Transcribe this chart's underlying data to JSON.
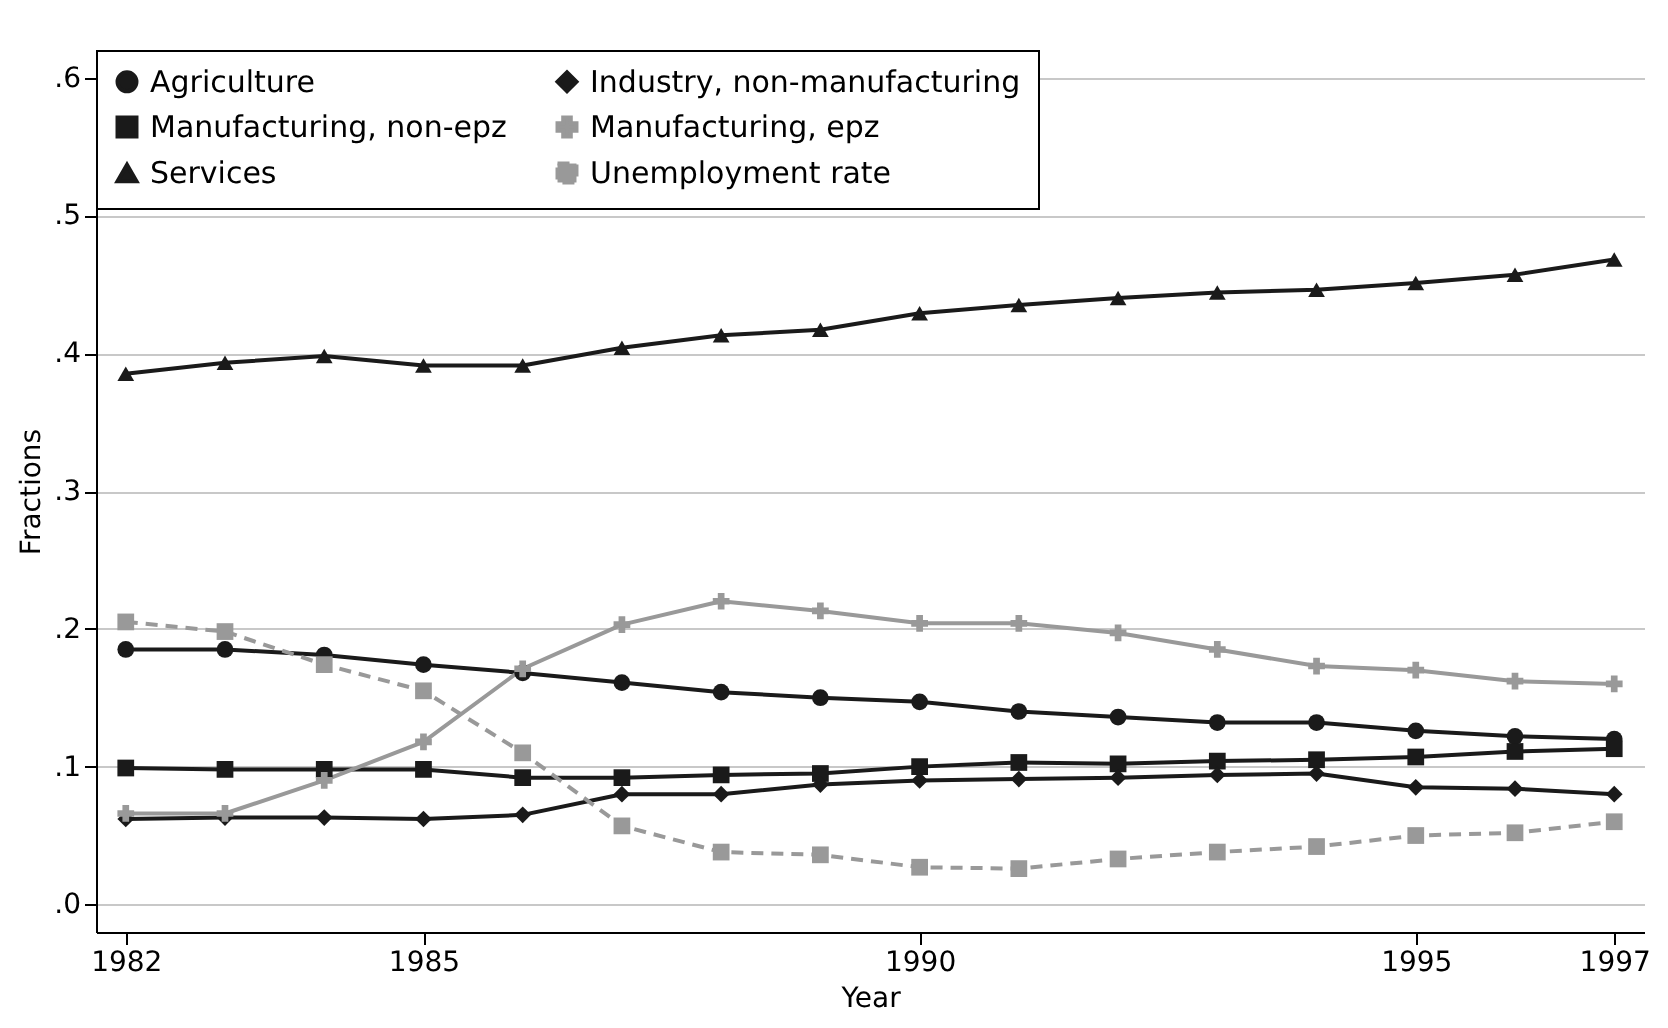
{
  "chart_data": {
    "type": "line",
    "xlabel": "Year",
    "ylabel": "Fractions",
    "x": [
      1982,
      1983,
      1984,
      1985,
      1986,
      1987,
      1988,
      1989,
      1990,
      1991,
      1992,
      1993,
      1994,
      1995,
      1996,
      1997
    ],
    "xlim": [
      1981.7,
      1997.3
    ],
    "xticks": [
      1982,
      1985,
      1990,
      1995,
      1997
    ],
    "ylim": [
      -0.02,
      0.62
    ],
    "yticks": [
      {
        "value": 0,
        "label": ".0"
      },
      {
        "value": 0.1,
        "label": ".1"
      },
      {
        "value": 0.2,
        "label": ".2"
      },
      {
        "value": 0.3,
        "label": ".3"
      },
      {
        "value": 0.4,
        "label": ".4"
      },
      {
        "value": 0.5,
        "label": ".5"
      },
      {
        "value": 0.6,
        "label": ".6"
      }
    ],
    "grid": "y",
    "legend": "top left",
    "series": [
      {
        "name": "Agriculture",
        "color": "#1a1a1a",
        "marker": "circle",
        "line_style": "solid",
        "values": [
          0.185,
          0.185,
          0.181,
          0.174,
          0.168,
          0.161,
          0.154,
          0.15,
          0.147,
          0.14,
          0.136,
          0.132,
          0.132,
          0.126,
          0.122,
          0.12
        ]
      },
      {
        "name": "Manufacturing, non-epz",
        "color": "#1a1a1a",
        "marker": "square",
        "line_style": "solid",
        "values": [
          0.099,
          0.098,
          0.098,
          0.098,
          0.092,
          0.092,
          0.094,
          0.095,
          0.1,
          0.103,
          0.102,
          0.104,
          0.105,
          0.107,
          0.111,
          0.113
        ]
      },
      {
        "name": "Services",
        "color": "#1a1a1a",
        "marker": "triangle",
        "line_style": "solid",
        "values": [
          0.385,
          0.393,
          0.398,
          0.391,
          0.391,
          0.404,
          0.413,
          0.417,
          0.429,
          0.435,
          0.44,
          0.444,
          0.446,
          0.451,
          0.457,
          0.468
        ]
      },
      {
        "name": "Industry, non-manufacturing",
        "color": "#1a1a1a",
        "marker": "diamond",
        "line_style": "solid",
        "values": [
          0.062,
          0.063,
          0.063,
          0.062,
          0.065,
          0.08,
          0.08,
          0.087,
          0.09,
          0.091,
          0.092,
          0.094,
          0.095,
          0.085,
          0.084,
          0.08
        ]
      },
      {
        "name": "Manufacturing, epz",
        "color": "#999999",
        "marker": "cross",
        "line_style": "solid",
        "values": [
          0.066,
          0.066,
          0.09,
          0.118,
          0.171,
          0.203,
          0.22,
          0.213,
          0.204,
          0.204,
          0.197,
          0.185,
          0.173,
          0.17,
          0.162,
          0.16
        ]
      },
      {
        "name": "Unemployment rate",
        "color": "#999999",
        "marker": "square",
        "line_style": "dashed",
        "values": [
          0.205,
          0.198,
          0.174,
          0.155,
          0.11,
          0.057,
          0.038,
          0.036,
          0.027,
          0.026,
          0.033,
          0.038,
          0.042,
          0.05,
          0.052,
          0.06
        ]
      }
    ]
  }
}
